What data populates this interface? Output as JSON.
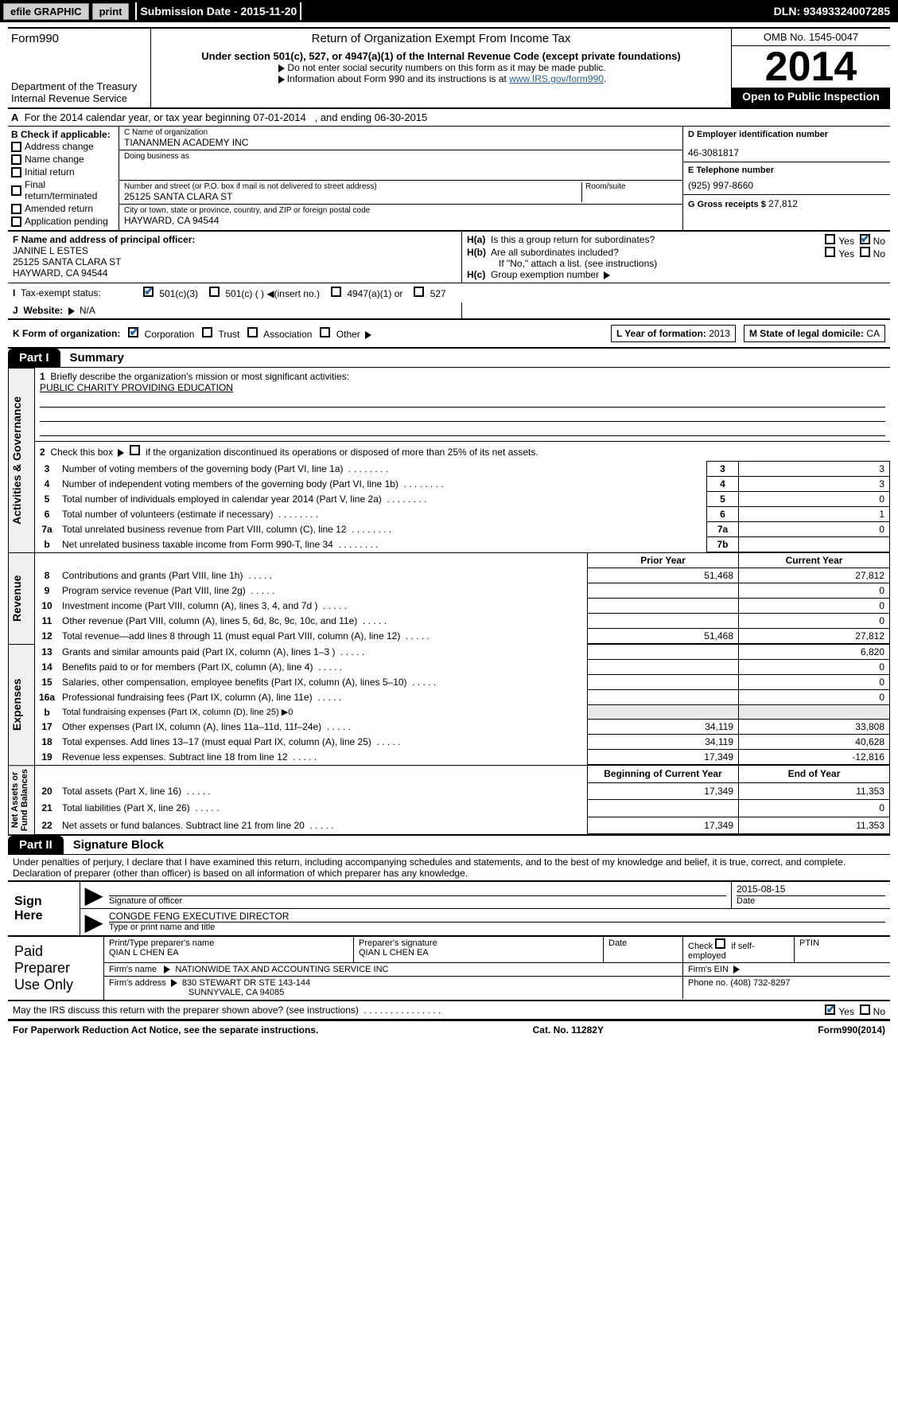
{
  "topbar": {
    "efile": "efile GRAPHIC",
    "print": "print",
    "submission": "Submission Date - 2015-11-20",
    "dln": "DLN: 93493324007285"
  },
  "header": {
    "form": "Form990",
    "dept": "Department of the Treasury\nInternal Revenue Service",
    "title": "Return of Organization Exempt From Income Tax",
    "subtitle": "Under section 501(c), 527, or 4947(a)(1) of the Internal Revenue Code (except private foundations)",
    "note1": "Do not enter social security numbers on this form as it may be made public.",
    "note2": "Information about Form 990 and its instructions is at",
    "note2_link": "www.IRS.gov/form990",
    "omb": "OMB No. 1545-0047",
    "year": "2014",
    "open": "Open to Public Inspection"
  },
  "rowA": {
    "prefix": "A",
    "text": "For the 2014 calendar year, or tax year beginning 07-01-2014",
    "text2": ", and ending 06-30-2015"
  },
  "colB": {
    "title": "B Check if applicable:",
    "items": [
      "Address change",
      "Name change",
      "Initial return",
      "Final return/terminated",
      "Amended return",
      "Application pending"
    ]
  },
  "colC": {
    "name_lbl": "C Name of organization",
    "name": "TIANANMEN ACADEMY INC",
    "dba_lbl": "Doing business as",
    "dba": "",
    "street_lbl": "Number and street (or P.O. box if mail is not delivered to street address)",
    "room_lbl": "Room/suite",
    "street": "25125 SANTA CLARA ST",
    "city_lbl": "City or town, state or province, country, and ZIP or foreign postal code",
    "city": "HAYWARD, CA  94544"
  },
  "colD": {
    "ein_lbl": "D Employer identification number",
    "ein": "46-3081817",
    "phone_lbl": "E Telephone number",
    "phone": "(925) 997-8660",
    "gross_lbl": "G Gross receipts $",
    "gross": "27,812"
  },
  "rowF": {
    "lbl": "F Name and address of principal officer:",
    "name": "JANINE L ESTES",
    "addr1": "25125 SANTA CLARA ST",
    "addr2": "HAYWARD, CA  94544",
    "ha_lbl": "H(a)",
    "ha_txt": "Is this a group return for subordinates?",
    "hb_lbl": "H(b)",
    "hb_txt": "Are all subordinates included?",
    "hb_note": "If \"No,\" attach a list. (see instructions)",
    "hc_lbl": "H(c)",
    "hc_txt": "Group exemption number",
    "yes": "Yes",
    "no": "No"
  },
  "taxRow": {
    "lbl": "Tax-exempt status:",
    "opt1": "501(c)(3)",
    "opt2": "501(c) (   )",
    "opt2_note": "(insert no.)",
    "opt3": "4947(a)(1) or",
    "opt4": "527"
  },
  "rowJ": {
    "lbl": "J",
    "txt": "Website:",
    "val": "N/A"
  },
  "rowK": {
    "lbl": "K Form of organization:",
    "opts": [
      "Corporation",
      "Trust",
      "Association",
      "Other"
    ],
    "L_lbl": "L Year of formation:",
    "L_val": "2013",
    "M_lbl": "M State of legal domicile:",
    "M_val": "CA"
  },
  "part1": {
    "tab": "Part I",
    "title": "Summary"
  },
  "summary": {
    "q1_lbl": "1",
    "q1": "Briefly describe the organization's mission or most significant activities:",
    "q1_val": "PUBLIC CHARITY PROVIDING EDUCATION",
    "q2_lbl": "2",
    "q2": "Check this box",
    "q2_txt": "if the organization discontinued its operations or disposed of more than 25% of its net assets.",
    "lines": [
      {
        "n": "3",
        "t": "Number of voting members of the governing body (Part VI, line 1a)",
        "box": "3",
        "v": "3"
      },
      {
        "n": "4",
        "t": "Number of independent voting members of the governing body (Part VI, line 1b)",
        "box": "4",
        "v": "3"
      },
      {
        "n": "5",
        "t": "Total number of individuals employed in calendar year 2014 (Part V, line 2a)",
        "box": "5",
        "v": "0"
      },
      {
        "n": "6",
        "t": "Total number of volunteers (estimate if necessary)",
        "box": "6",
        "v": "1"
      },
      {
        "n": "7a",
        "t": "Total unrelated business revenue from Part VIII, column (C), line 12",
        "box": "7a",
        "v": "0"
      },
      {
        "n": "b",
        "t": "Net unrelated business taxable income from Form 990-T, line 34",
        "box": "7b",
        "v": ""
      }
    ],
    "col_prior": "Prior Year",
    "col_curr": "Current Year",
    "revenue": [
      {
        "n": "8",
        "t": "Contributions and grants (Part VIII, line 1h)",
        "p": "51,468",
        "c": "27,812"
      },
      {
        "n": "9",
        "t": "Program service revenue (Part VIII, line 2g)",
        "p": "",
        "c": "0"
      },
      {
        "n": "10",
        "t": "Investment income (Part VIII, column (A), lines 3, 4, and 7d )",
        "p": "",
        "c": "0"
      },
      {
        "n": "11",
        "t": "Other revenue (Part VIII, column (A), lines 5, 6d, 8c, 9c, 10c, and 11e)",
        "p": "",
        "c": "0"
      },
      {
        "n": "12",
        "t": "Total revenue—add lines 8 through 11 (must equal Part VIII, column (A), line 12)",
        "p": "51,468",
        "c": "27,812"
      }
    ],
    "expenses": [
      {
        "n": "13",
        "t": "Grants and similar amounts paid (Part IX, column (A), lines 1–3 )",
        "p": "",
        "c": "6,820"
      },
      {
        "n": "14",
        "t": "Benefits paid to or for members (Part IX, column (A), line 4)",
        "p": "",
        "c": "0"
      },
      {
        "n": "15",
        "t": "Salaries, other compensation, employee benefits (Part IX, column (A), lines 5–10)",
        "p": "",
        "c": "0"
      },
      {
        "n": "16a",
        "t": "Professional fundraising fees (Part IX, column (A), line 11e)",
        "p": "",
        "c": "0"
      },
      {
        "n": "b",
        "t": "Total fundraising expenses (Part IX, column (D), line 25) ▶0",
        "p": null,
        "c": null
      },
      {
        "n": "17",
        "t": "Other expenses (Part IX, column (A), lines 11a–11d, 11f–24e)",
        "p": "34,119",
        "c": "33,808"
      },
      {
        "n": "18",
        "t": "Total expenses. Add lines 13–17 (must equal Part IX, column (A), line 25)",
        "p": "34,119",
        "c": "40,628"
      },
      {
        "n": "19",
        "t": "Revenue less expenses. Subtract line 18 from line 12",
        "p": "17,349",
        "c": "-12,816"
      }
    ],
    "col_beg": "Beginning of Current Year",
    "col_end": "End of Year",
    "netassets": [
      {
        "n": "20",
        "t": "Total assets (Part X, line 16)",
        "p": "17,349",
        "c": "11,353"
      },
      {
        "n": "21",
        "t": "Total liabilities (Part X, line 26)",
        "p": "",
        "c": "0"
      },
      {
        "n": "22",
        "t": "Net assets or fund balances. Subtract line 21 from line 20",
        "p": "17,349",
        "c": "11,353"
      }
    ],
    "vlabels": {
      "gov": "Activities & Governance",
      "rev": "Revenue",
      "exp": "Expenses",
      "net": "Net Assets or\nFund Balances"
    }
  },
  "part2": {
    "tab": "Part II",
    "title": "Signature Block"
  },
  "sig": {
    "perjury": "Under penalties of perjury, I declare that I have examined this return, including accompanying schedules and statements, and to the best of my knowledge and belief, it is true, correct, and complete. Declaration of preparer (other than officer) is based on all information of which preparer has any knowledge.",
    "sign": "Sign Here",
    "sig_lbl": "Signature of officer",
    "date_lbl": "Date",
    "date": "2015-08-15",
    "name": "CONGDE FENG  EXECUTIVE DIRECTOR",
    "name_lbl": "Type or print name and title"
  },
  "prep": {
    "side": "Paid Preparer Use Only",
    "r1": {
      "c1_lbl": "Print/Type preparer's name",
      "c1": "QIAN L CHEN EA",
      "c2_lbl": "Preparer's signature",
      "c2": "QIAN L CHEN EA",
      "c3_lbl": "Date",
      "c3": "",
      "c4_lbl": "Check",
      "c4_txt": "if self-employed",
      "c5_lbl": "PTIN",
      "c5": ""
    },
    "r2": {
      "c1_lbl": "Firm's name",
      "c1": "NATIONWIDE TAX AND ACCOUNTING SERVICE INC",
      "c2_lbl": "Firm's EIN",
      "c2": ""
    },
    "r3": {
      "c1_lbl": "Firm's address",
      "c1": "830 STEWART DR STE 143-144",
      "c1b": "SUNNYVALE, CA  94085",
      "c2_lbl": "Phone no.",
      "c2": "(408) 732-8297"
    }
  },
  "discuss": {
    "txt": "May the IRS discuss this return with the preparer shown above? (see instructions)",
    "yes": "Yes",
    "no": "No"
  },
  "footer": {
    "left": "For Paperwork Reduction Act Notice, see the separate instructions.",
    "mid": "Cat. No. 11282Y",
    "right_pre": "Form",
    "right_form": "990",
    "right_yr": "(2014)"
  }
}
